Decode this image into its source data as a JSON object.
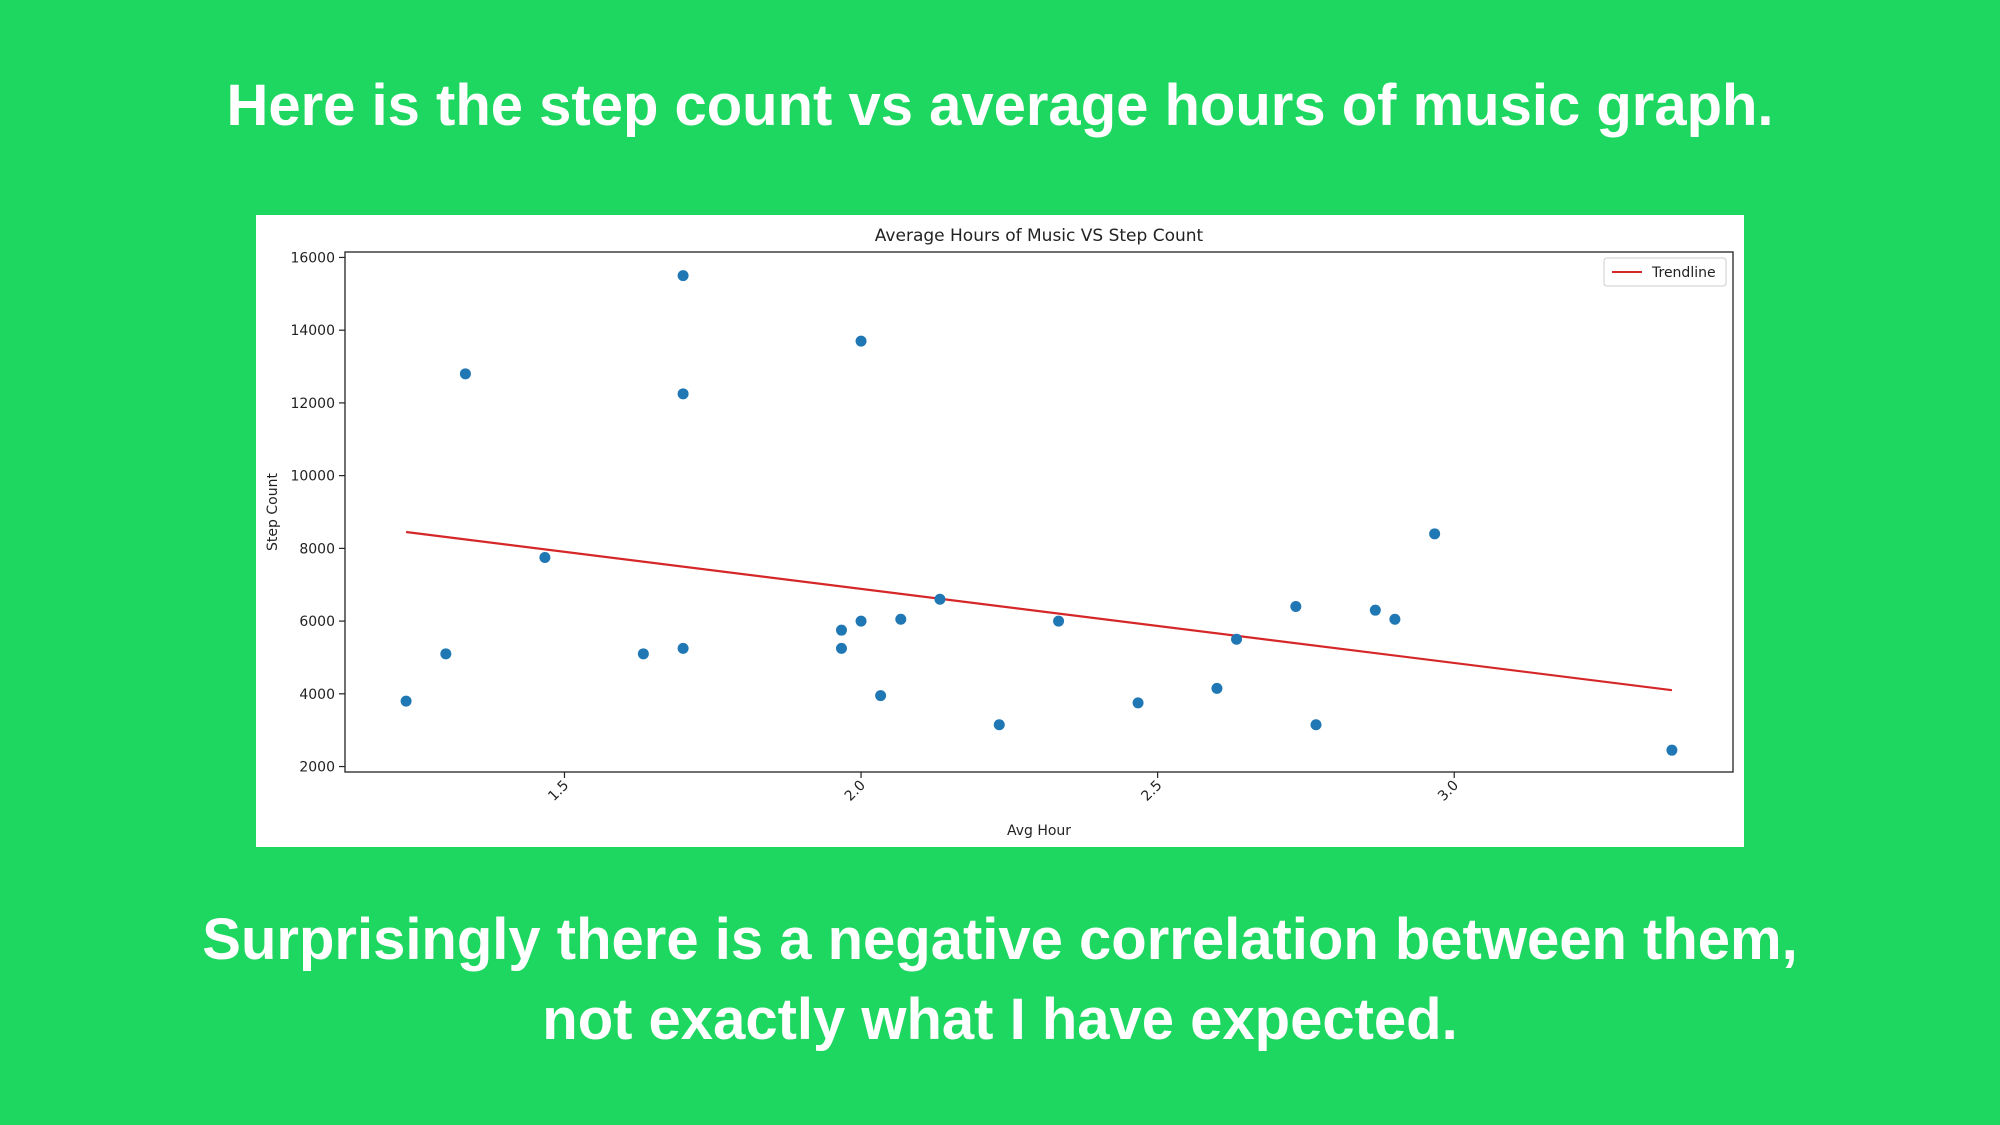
{
  "slide": {
    "heading": "Here is the step count vs average hours of music graph.",
    "caption_line1": "Surprisingly there is a negative correlation between them,",
    "caption_line2": "not exactly what I have expected.",
    "background_color": "#1ed760"
  },
  "chart_data": {
    "type": "scatter",
    "title": "Average Hours of Music VS Step Count",
    "xlabel": "Avg Hour",
    "ylabel": "Step Count",
    "xlim": [
      1.13,
      3.47
    ],
    "ylim": [
      1850,
      16150
    ],
    "x_ticks": [
      1.5,
      2.0,
      2.5,
      3.0
    ],
    "x_tick_labels": [
      "1.5",
      "2.0",
      "2.5",
      "3.0"
    ],
    "y_ticks": [
      2000,
      4000,
      6000,
      8000,
      10000,
      12000,
      14000,
      16000
    ],
    "y_tick_labels": [
      "2000",
      "4000",
      "6000",
      "8000",
      "10000",
      "12000",
      "14000",
      "16000"
    ],
    "legend": {
      "position": "top-right",
      "entries": [
        "Trendline"
      ]
    },
    "point_color": "#1f77b4",
    "trend_color": "#d62728",
    "points": [
      {
        "x": 1.233,
        "y": 3800
      },
      {
        "x": 1.3,
        "y": 5100
      },
      {
        "x": 1.333,
        "y": 12800
      },
      {
        "x": 1.467,
        "y": 7750
      },
      {
        "x": 1.633,
        "y": 5100
      },
      {
        "x": 1.7,
        "y": 15500
      },
      {
        "x": 1.7,
        "y": 12250
      },
      {
        "x": 1.7,
        "y": 5250
      },
      {
        "x": 1.967,
        "y": 5750
      },
      {
        "x": 1.967,
        "y": 5250
      },
      {
        "x": 2.0,
        "y": 13700
      },
      {
        "x": 2.0,
        "y": 6000
      },
      {
        "x": 2.033,
        "y": 3950
      },
      {
        "x": 2.067,
        "y": 6050
      },
      {
        "x": 2.133,
        "y": 6600
      },
      {
        "x": 2.233,
        "y": 3150
      },
      {
        "x": 2.333,
        "y": 6000
      },
      {
        "x": 2.467,
        "y": 3750
      },
      {
        "x": 2.6,
        "y": 4150
      },
      {
        "x": 2.633,
        "y": 5500
      },
      {
        "x": 2.733,
        "y": 6400
      },
      {
        "x": 2.767,
        "y": 3150
      },
      {
        "x": 2.867,
        "y": 6300
      },
      {
        "x": 2.9,
        "y": 6050
      },
      {
        "x": 2.967,
        "y": 8400
      },
      {
        "x": 3.367,
        "y": 2450
      }
    ],
    "trendline": {
      "x": [
        1.233,
        3.367
      ],
      "y": [
        8450,
        4100
      ]
    }
  }
}
